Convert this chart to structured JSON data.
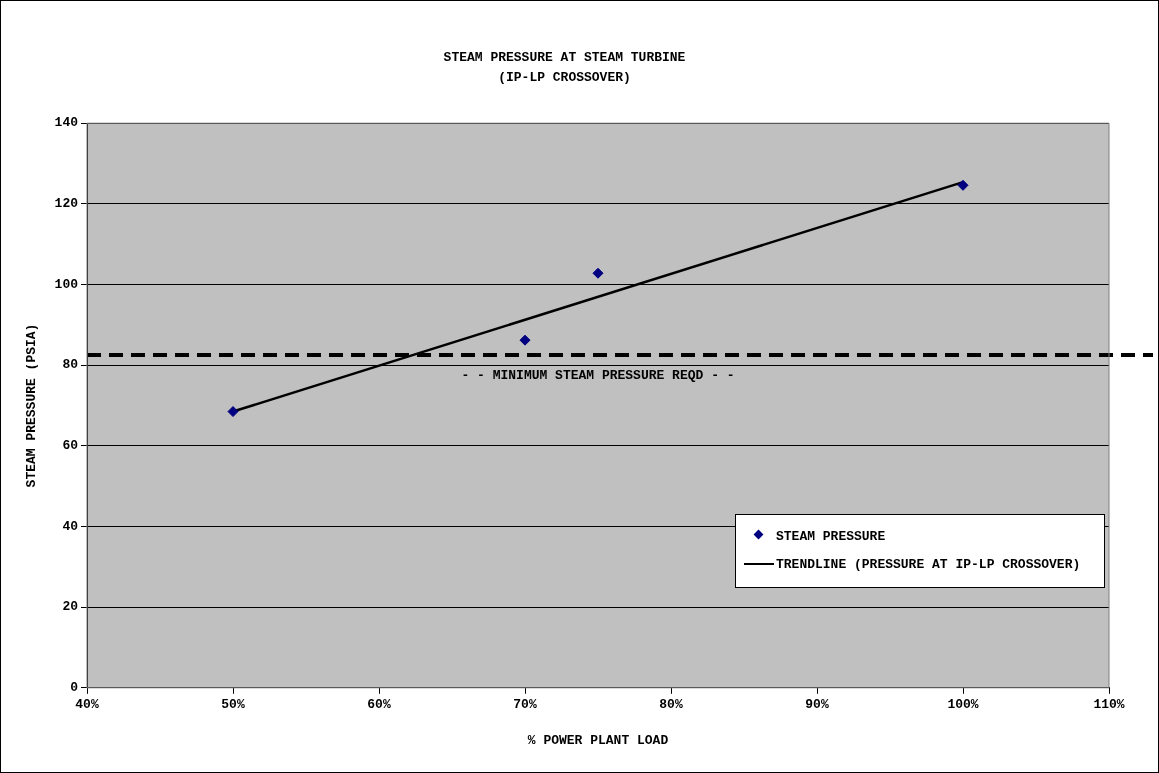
{
  "chart_data": {
    "type": "scatter",
    "title": "STEAM PRESSURE AT STEAM TURBINE",
    "subtitle": "(IP-LP CROSSOVER)",
    "xlabel": "% POWER PLANT LOAD",
    "ylabel": "STEAM PRESSURE (PSIA)",
    "x": [
      50,
      70,
      75,
      100
    ],
    "series": [
      {
        "name": "STEAM PRESSURE",
        "type": "scatter",
        "color": "#000080",
        "marker": "diamond",
        "values": [
          68.5,
          86.2,
          102.8,
          124.6
        ]
      },
      {
        "name": "TRENDLINE (PRESSURE AT IP-LP CROSSOVER)",
        "type": "line",
        "color": "#000000",
        "marker": "none",
        "line_style": "solid",
        "x": [
          50,
          100
        ],
        "values": [
          68.5,
          125.4
        ]
      }
    ],
    "xlim": [
      40,
      110
    ],
    "xticks": [
      {
        "value": 40,
        "label": "40%"
      },
      {
        "value": 50,
        "label": "50%"
      },
      {
        "value": 60,
        "label": "60%"
      },
      {
        "value": 70,
        "label": "70%"
      },
      {
        "value": 80,
        "label": "80%"
      },
      {
        "value": 90,
        "label": "90%"
      },
      {
        "value": 100,
        "label": "100%"
      },
      {
        "value": 110,
        "label": "110%"
      }
    ],
    "ylim": [
      0,
      140
    ],
    "yticks": [
      0,
      20,
      40,
      60,
      80,
      100,
      120,
      140
    ],
    "ref_lines": [
      {
        "axis": "y",
        "value": 82.5,
        "label": "- - MINIMUM STEAM PRESSURE REQD - -",
        "color": "#000000",
        "line_style": "dashed"
      }
    ],
    "grid": "y",
    "legend": "bottom right"
  }
}
